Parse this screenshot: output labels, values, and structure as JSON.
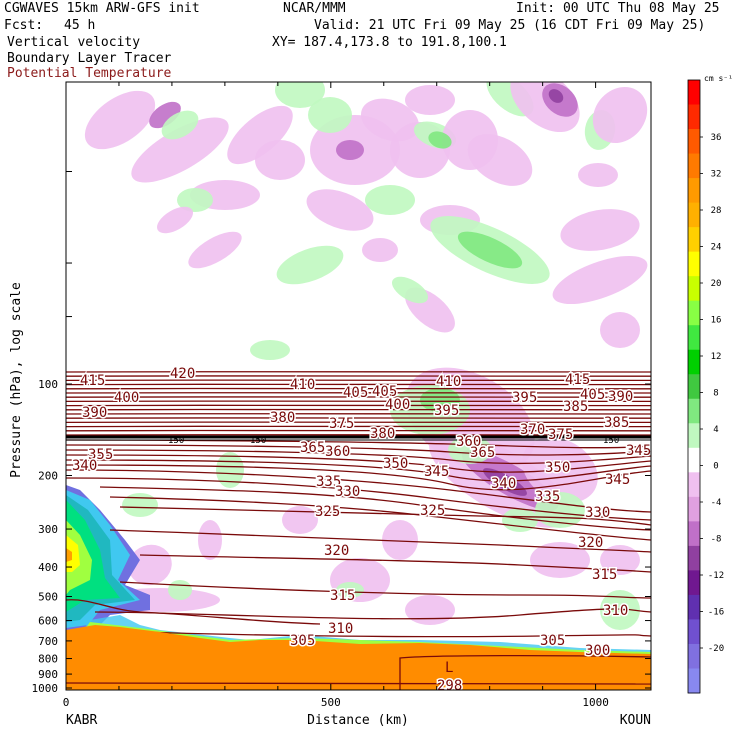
{
  "header": {
    "model": "CGWAVES 15km ARW-GFS init",
    "center": "NCAR/MMM",
    "init": "Init: 00 UTC Thu 08 May 25",
    "fcst_label": "Fcst:",
    "fcst_value": "45 h",
    "valid": "Valid: 21 UTC Fri 09 May 25 (16 CDT Fri 09 May 25)",
    "field1": "Vertical velocity",
    "field2": "Boundary Layer Tracer",
    "field3": "Potential Temperature",
    "xy": "XY= 187.4,173.8 to 191.8,100.1"
  },
  "chart_data": {
    "type": "cross-section",
    "xlabel": "Distance (km)",
    "ylabel": "Pressure (hPa), log scale",
    "x_ticks": [
      "0",
      "500",
      "1000"
    ],
    "y_ticks": [
      "100",
      "200",
      "300",
      "400",
      "500",
      "600",
      "700",
      "800",
      "900",
      "1000"
    ],
    "y_scale": "log",
    "left_station": "KABR",
    "right_station": "KOUN",
    "colorbar": {
      "unit": "cm s⁻¹",
      "labels": [
        "36",
        "32",
        "28",
        "24",
        "20",
        "16",
        "12",
        "8",
        "4",
        "0",
        "-4",
        "-8",
        "-12",
        "-16",
        "-20"
      ],
      "colors": [
        "#ff0000",
        "#ff2a00",
        "#ff5a00",
        "#ff7a00",
        "#ff9a00",
        "#ffb000",
        "#ffd000",
        "#ffff00",
        "#c8ff00",
        "#88ff44",
        "#40e840",
        "#00d000",
        "#40c840",
        "#80e880",
        "#c0f8c0",
        "#ffffff",
        "#f0c0f0",
        "#e0a0e0",
        "#c070c8",
        "#9040a0",
        "#701890",
        "#6030b0",
        "#7050d0",
        "#8070e0",
        "#8888f0"
      ]
    },
    "theta_labels": [
      "415",
      "420",
      "410",
      "405",
      "410",
      "415",
      "405",
      "400",
      "405",
      "395",
      "390",
      "400",
      "395",
      "385",
      "390",
      "385",
      "380",
      "375",
      "370",
      "380",
      "375",
      "355",
      "365",
      "360",
      "360",
      "365",
      "345",
      "340",
      "350",
      "345",
      "350",
      "345",
      "335",
      "330",
      "340",
      "335",
      "325",
      "325",
      "330",
      "320",
      "320",
      "315",
      "315",
      "310",
      "310",
      "305",
      "305",
      "300",
      "298"
    ],
    "tropopause_labels": [
      "150",
      "150",
      "150"
    ],
    "low_label": "L"
  }
}
